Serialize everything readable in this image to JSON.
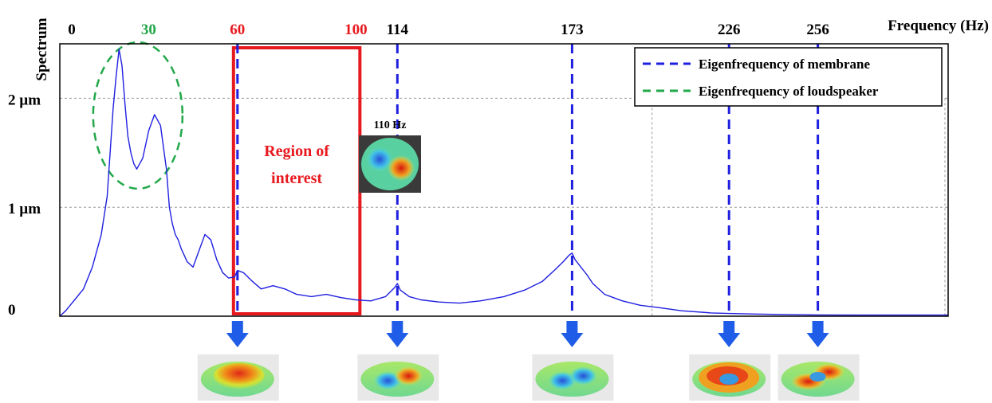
{
  "chart_data": {
    "type": "line",
    "xlabel": "Frequency (Hz)",
    "ylabel": "Spectrum",
    "xlim": [
      0,
      300
    ],
    "ylim": [
      0,
      2.5
    ],
    "x_ticks": [
      {
        "value": 0,
        "label": "0",
        "color": "#000000"
      },
      {
        "value": 30,
        "label": "30",
        "color": "#22a84a"
      },
      {
        "value": 60,
        "label": "60",
        "color": "#e8191e"
      },
      {
        "value": 100,
        "label": "100",
        "color": "#e8191e"
      },
      {
        "value": 114,
        "label": "114",
        "color": "#000000"
      },
      {
        "value": 173,
        "label": "173",
        "color": "#000000"
      },
      {
        "value": 226,
        "label": "226",
        "color": "#000000"
      },
      {
        "value": 256,
        "label": "256",
        "color": "#000000"
      }
    ],
    "y_ticks": [
      {
        "value": 0,
        "label": "0"
      },
      {
        "value": 1,
        "label": "1 µm"
      },
      {
        "value": 2,
        "label": "2 µm"
      }
    ],
    "series": [
      {
        "color": "#1f1fe0",
        "x": [
          0,
          2,
          5,
          8,
          11,
          14,
          16,
          17,
          18,
          19,
          20,
          21,
          22,
          23,
          24,
          25,
          26,
          28,
          30,
          32,
          34,
          36,
          37,
          38,
          39,
          40,
          41,
          43,
          45,
          47,
          49,
          51,
          53,
          55,
          57,
          59,
          60,
          62,
          65,
          68,
          72,
          76,
          80,
          85,
          90,
          95,
          100,
          105,
          110,
          113,
          114,
          115,
          118,
          122,
          128,
          135,
          142,
          150,
          157,
          163,
          167,
          170,
          172,
          173,
          174,
          176,
          178,
          180,
          184,
          190,
          196,
          202,
          210,
          220,
          226,
          235,
          245,
          256,
          270,
          285,
          300
        ],
        "y": [
          0.0,
          0.05,
          0.15,
          0.25,
          0.45,
          0.75,
          1.1,
          1.5,
          1.9,
          2.2,
          2.45,
          2.3,
          1.95,
          1.65,
          1.5,
          1.4,
          1.35,
          1.45,
          1.7,
          1.85,
          1.75,
          1.35,
          1.0,
          0.85,
          0.75,
          0.7,
          0.62,
          0.5,
          0.45,
          0.6,
          0.75,
          0.7,
          0.52,
          0.4,
          0.35,
          0.36,
          0.42,
          0.4,
          0.32,
          0.25,
          0.28,
          0.25,
          0.2,
          0.18,
          0.2,
          0.17,
          0.15,
          0.14,
          0.18,
          0.26,
          0.3,
          0.24,
          0.18,
          0.15,
          0.13,
          0.12,
          0.14,
          0.18,
          0.24,
          0.32,
          0.42,
          0.5,
          0.56,
          0.58,
          0.52,
          0.45,
          0.38,
          0.3,
          0.2,
          0.14,
          0.1,
          0.08,
          0.05,
          0.03,
          0.025,
          0.02,
          0.015,
          0.012,
          0.01,
          0.01,
          0.01
        ]
      }
    ],
    "vertical_markers": [
      60,
      114,
      173,
      226,
      256
    ],
    "region": {
      "x0": 60,
      "x1": 100,
      "label_line1": "Region of",
      "label_line2": "interest",
      "color": "#e8191e"
    },
    "ellipse": {
      "center_x": 25,
      "center_y": 1.9,
      "color": "#22a84a"
    },
    "grid": true,
    "legend": {
      "position": "top-right",
      "entries": [
        {
          "label": "Eigenfrequency of membrane",
          "color": "#1f1fe0"
        },
        {
          "label": "Eigenfrequency of loudspeaker",
          "color": "#22a84a"
        }
      ]
    },
    "inset": {
      "label": "110 Hz",
      "x": 110
    },
    "mode_shapes": [
      60,
      114,
      173,
      226,
      256
    ]
  }
}
